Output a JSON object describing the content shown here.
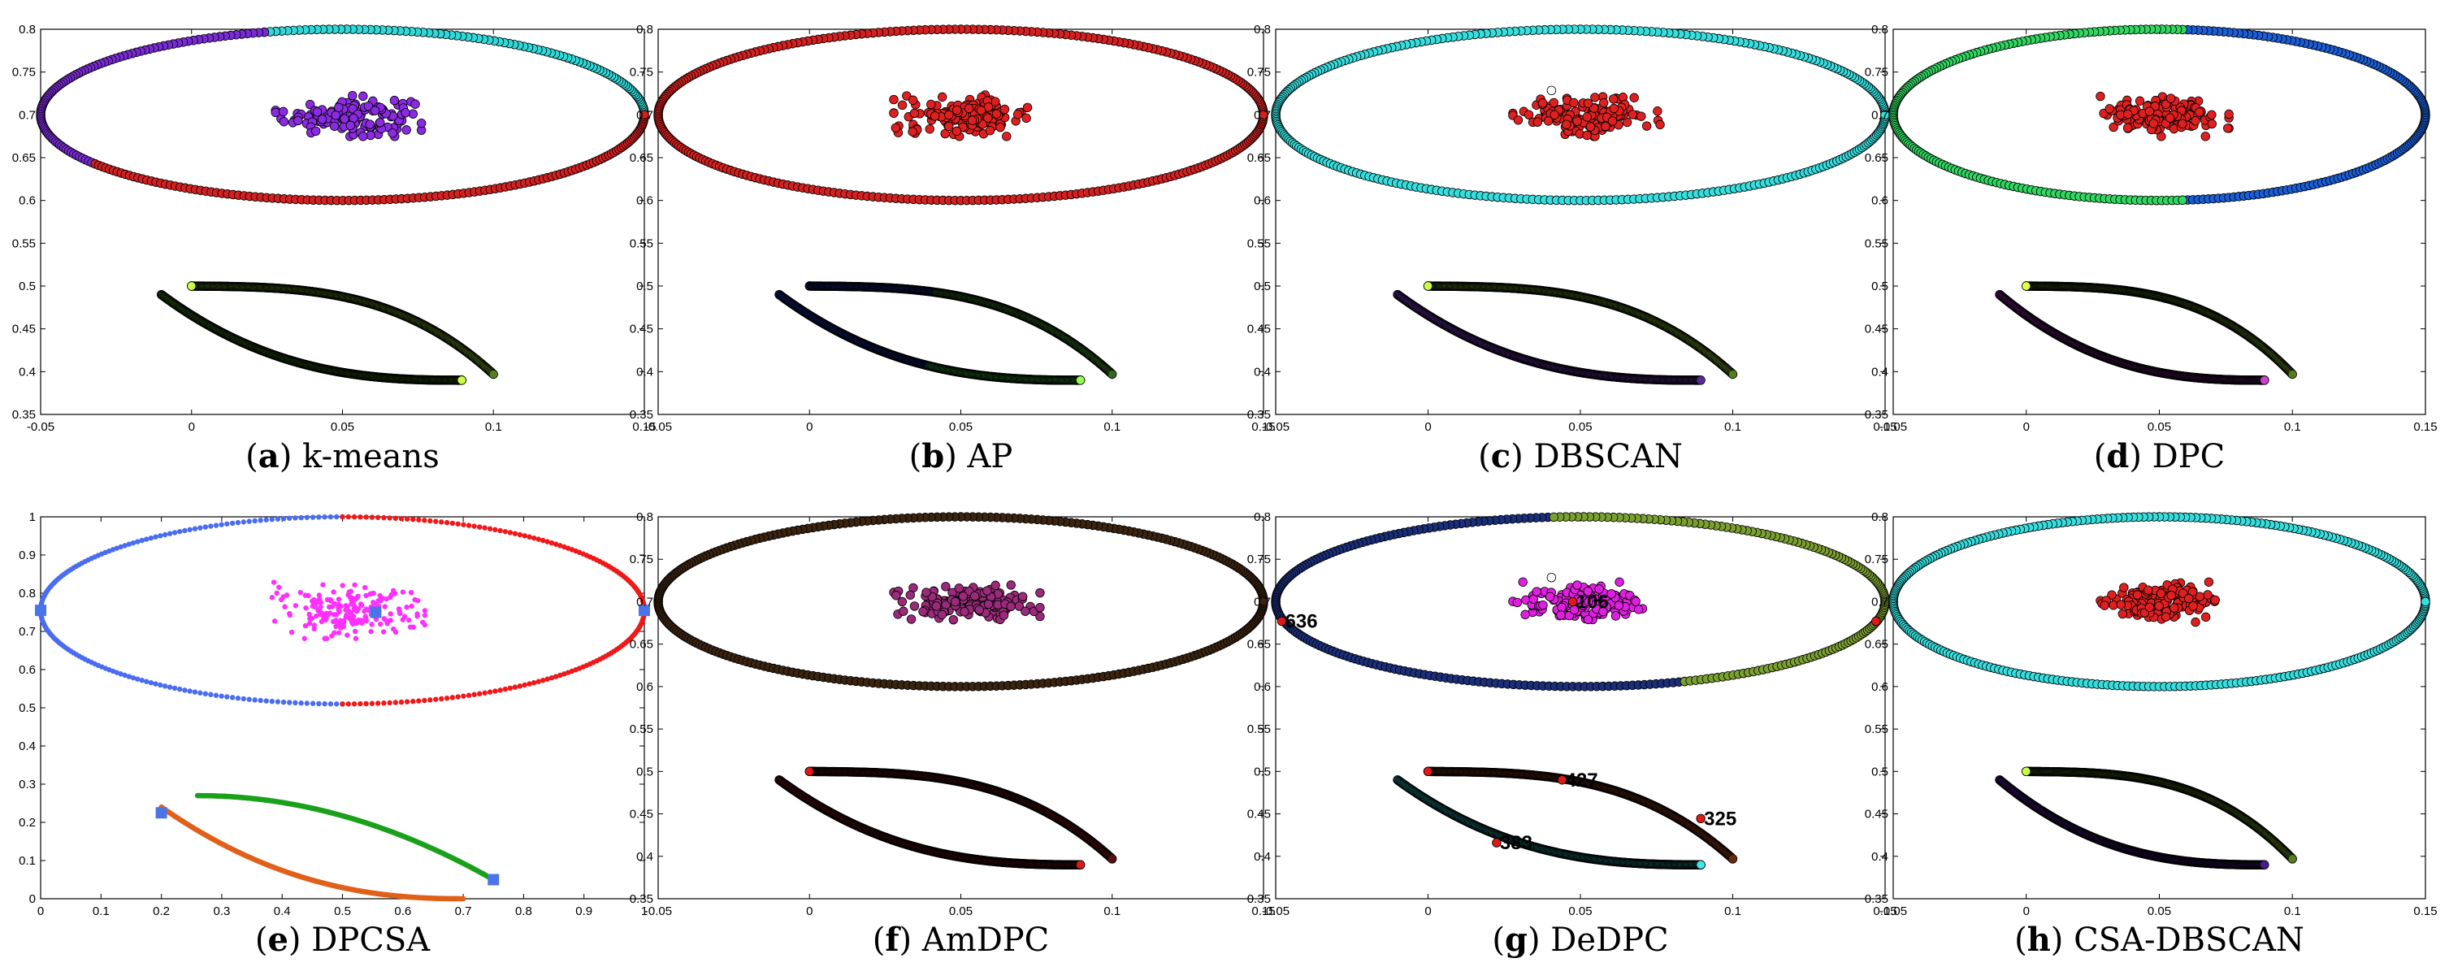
{
  "figure": {
    "panels": [
      {
        "id": "a",
        "caption_letter": "a",
        "caption_text": "k-means"
      },
      {
        "id": "b",
        "caption_letter": "b",
        "caption_text": "AP"
      },
      {
        "id": "c",
        "caption_letter": "c",
        "caption_text": "DBSCAN"
      },
      {
        "id": "d",
        "caption_letter": "d",
        "caption_text": "DPC"
      },
      {
        "id": "e",
        "caption_letter": "e",
        "caption_text": "DPCSA"
      },
      {
        "id": "f",
        "caption_letter": "f",
        "caption_text": "AmDPC"
      },
      {
        "id": "g",
        "caption_letter": "g",
        "caption_text": "DeDPC"
      },
      {
        "id": "h",
        "caption_letter": "h",
        "caption_text": "CSA-DBSCAN"
      }
    ]
  },
  "chart_data": [
    {
      "id": "a",
      "type": "scatter",
      "title": "k-means",
      "xlim": [
        -0.05,
        0.15
      ],
      "ylim": [
        0.35,
        0.8
      ],
      "xticks": [
        "-0.05",
        "0",
        "0.05",
        "0.1",
        "0.15"
      ],
      "yticks": [
        "0.35",
        "0.4",
        "0.45",
        "0.5",
        "0.55",
        "0.6",
        "0.65",
        "0.7",
        "0.75",
        "0.8"
      ],
      "series": [
        {
          "name": "ellipse upper-right",
          "shape": "ellipse-arc",
          "cx": 0.05,
          "cy": 0.7,
          "rx": 0.1,
          "ry": 0.1,
          "from_deg": 0,
          "to_deg": 105,
          "color": "#2fd9d9"
        },
        {
          "name": "ellipse left",
          "shape": "ellipse-arc",
          "cx": 0.05,
          "cy": 0.7,
          "rx": 0.1,
          "ry": 0.1,
          "from_deg": 105,
          "to_deg": 215,
          "color": "#7a2bd6"
        },
        {
          "name": "ellipse bottom",
          "shape": "ellipse-arc",
          "cx": 0.05,
          "cy": 0.7,
          "rx": 0.1,
          "ry": 0.1,
          "from_deg": 215,
          "to_deg": 360,
          "color": "#d62020"
        },
        {
          "name": "central blob",
          "shape": "blob",
          "cx": 0.052,
          "cy": 0.699,
          "sx": 0.0105,
          "sy": 0.0105,
          "n": 150,
          "color": "#8a2be2"
        },
        {
          "name": "upper arc",
          "shape": "arc-upper",
          "color": "#567d1e"
        },
        {
          "name": "lower arc",
          "shape": "arc-lower",
          "color": "#2e5a12"
        }
      ],
      "special_points": [
        {
          "x": 0.0,
          "y": 0.5,
          "color": "#c8ff40"
        },
        {
          "x": 0.0895,
          "y": 0.39,
          "color": "#c8ff40"
        }
      ]
    },
    {
      "id": "b",
      "type": "scatter",
      "title": "AP",
      "xlim": [
        -0.05,
        0.15
      ],
      "ylim": [
        0.35,
        0.8
      ],
      "xticks": [
        "-0.05",
        "0",
        "0.05",
        "0.1",
        "0.15"
      ],
      "yticks": [
        "0.35",
        "0.4",
        "0.45",
        "0.5",
        "0.55",
        "0.6",
        "0.65",
        "0.7",
        "0.75",
        "0.8"
      ],
      "series": [
        {
          "name": "ellipse",
          "shape": "ellipse-arc",
          "cx": 0.05,
          "cy": 0.7,
          "rx": 0.1,
          "ry": 0.1,
          "from_deg": 0,
          "to_deg": 360,
          "color": "#d62020"
        },
        {
          "name": "central blob",
          "shape": "blob",
          "cx": 0.052,
          "cy": 0.699,
          "sx": 0.0105,
          "sy": 0.0105,
          "n": 150,
          "color": "#e02020"
        },
        {
          "name": "upper arc left",
          "shape": "arc-upper",
          "t_from": 0.0,
          "t_to": 0.42,
          "color": "#10207a"
        },
        {
          "name": "upper arc right",
          "shape": "arc-upper",
          "t_from": 0.42,
          "t_to": 1.0,
          "color": "#2e6a22"
        },
        {
          "name": "lower arc left",
          "shape": "arc-lower",
          "t_from": 0.0,
          "t_to": 0.5,
          "color": "#10207a"
        },
        {
          "name": "lower arc right",
          "shape": "arc-lower",
          "t_from": 0.5,
          "t_to": 1.0,
          "color": "#2a8f2a"
        }
      ],
      "special_points": [
        {
          "x": 0.0895,
          "y": 0.39,
          "color": "#90ff50"
        }
      ]
    },
    {
      "id": "c",
      "type": "scatter",
      "title": "DBSCAN",
      "xlim": [
        -0.05,
        0.15
      ],
      "ylim": [
        0.35,
        0.8
      ],
      "xticks": [
        "-0.05",
        "0",
        "0.05",
        "0.1",
        "0.15"
      ],
      "yticks": [
        "0.35",
        "0.4",
        "0.45",
        "0.5",
        "0.55",
        "0.6",
        "0.65",
        "0.7",
        "0.75",
        "0.8"
      ],
      "series": [
        {
          "name": "ellipse",
          "shape": "ellipse-arc",
          "cx": 0.05,
          "cy": 0.7,
          "rx": 0.1,
          "ry": 0.1,
          "from_deg": 0,
          "to_deg": 360,
          "color": "#36dede"
        },
        {
          "name": "central blob",
          "shape": "blob",
          "cx": 0.052,
          "cy": 0.699,
          "sx": 0.0105,
          "sy": 0.0105,
          "n": 150,
          "color": "#e02020"
        },
        {
          "name": "upper arc",
          "shape": "arc-upper",
          "color": "#567d1e"
        },
        {
          "name": "lower arc",
          "shape": "arc-lower",
          "color": "#5a2a9a"
        }
      ],
      "special_points": [
        {
          "x": 0.0405,
          "y": 0.7285,
          "color": "#ffffff"
        },
        {
          "x": 0.0,
          "y": 0.5,
          "color": "#c8ff40"
        }
      ]
    },
    {
      "id": "d",
      "type": "scatter",
      "title": "DPC",
      "xlim": [
        -0.05,
        0.15
      ],
      "ylim": [
        0.35,
        0.8
      ],
      "xticks": [
        "-0.05",
        "0",
        "0.05",
        "0.1",
        "0.15"
      ],
      "yticks": [
        "0.35",
        "0.4",
        "0.45",
        "0.5",
        "0.55",
        "0.6",
        "0.65",
        "0.7",
        "0.75",
        "0.8"
      ],
      "series": [
        {
          "name": "ellipse right",
          "shape": "ellipse-arc",
          "cx": 0.05,
          "cy": 0.7,
          "rx": 0.1,
          "ry": 0.1,
          "from_deg": -85,
          "to_deg": 85,
          "color": "#1a5ed8"
        },
        {
          "name": "ellipse left",
          "shape": "ellipse-arc",
          "cx": 0.05,
          "cy": 0.7,
          "rx": 0.1,
          "ry": 0.1,
          "from_deg": 85,
          "to_deg": 275,
          "color": "#30d860"
        },
        {
          "name": "central blob",
          "shape": "blob",
          "cx": 0.052,
          "cy": 0.699,
          "sx": 0.0105,
          "sy": 0.0105,
          "n": 150,
          "color": "#e02020"
        },
        {
          "name": "upper arc",
          "shape": "arc-upper",
          "color": "#567d1e"
        },
        {
          "name": "lower arc",
          "shape": "arc-lower",
          "color": "#7a1f8a"
        }
      ],
      "special_points": [
        {
          "x": 0.0,
          "y": 0.5,
          "color": "#e8ff40"
        },
        {
          "x": 0.0895,
          "y": 0.39,
          "color": "#d040d0"
        }
      ]
    },
    {
      "id": "e",
      "type": "scatter",
      "title": "DPCSA",
      "xlim": [
        0,
        1
      ],
      "ylim": [
        0,
        1
      ],
      "xticks": [
        "0",
        "0.1",
        "0.2",
        "0.3",
        "0.4",
        "0.5",
        "0.6",
        "0.7",
        "0.8",
        "0.9",
        "1"
      ],
      "yticks": [
        "0",
        "0.1",
        "0.2",
        "0.3",
        "0.4",
        "0.5",
        "0.6",
        "0.7",
        "0.8",
        "0.9",
        "1"
      ],
      "series": [
        {
          "name": "ellipse left",
          "shape": "ellipse-arc",
          "cx": 0.5,
          "cy": 0.755,
          "rx": 0.5,
          "ry": 0.245,
          "from_deg": 90,
          "to_deg": 270,
          "color": "#4a6cf0",
          "small": true
        },
        {
          "name": "ellipse right",
          "shape": "ellipse-arc",
          "cx": 0.5,
          "cy": 0.755,
          "rx": 0.5,
          "ry": 0.245,
          "from_deg": -90,
          "to_deg": 90,
          "color": "#f01818",
          "small": true
        },
        {
          "name": "central blob",
          "shape": "blob",
          "cx": 0.51,
          "cy": 0.755,
          "sx": 0.055,
          "sy": 0.032,
          "n": 200,
          "color": "#ff30ff",
          "small": true
        },
        {
          "name": "upper arc",
          "shape": "e-upper",
          "color": "#1aa01a"
        },
        {
          "name": "lower arc",
          "shape": "e-lower",
          "color": "#e0601a"
        }
      ],
      "centers": [
        {
          "x": 0.0,
          "y": 0.755
        },
        {
          "x": 1.0,
          "y": 0.755
        },
        {
          "x": 0.555,
          "y": 0.75
        },
        {
          "x": 0.2,
          "y": 0.225
        },
        {
          "x": 0.75,
          "y": 0.05
        }
      ]
    },
    {
      "id": "f",
      "type": "scatter",
      "title": "AmDPC",
      "xlim": [
        -0.05,
        0.15
      ],
      "ylim": [
        0.35,
        0.8
      ],
      "xticks": [
        "-0.05",
        "0",
        "0.05",
        "0.1",
        "0.15"
      ],
      "yticks": [
        "0.35",
        "0.4",
        "0.45",
        "0.5",
        "0.55",
        "0.6",
        "0.65",
        "0.7",
        "0.75",
        "0.8"
      ],
      "series": [
        {
          "name": "ellipse",
          "shape": "ellipse-arc",
          "cx": 0.05,
          "cy": 0.7,
          "rx": 0.1,
          "ry": 0.1,
          "from_deg": 0,
          "to_deg": 360,
          "color": "#3a2410"
        },
        {
          "name": "central blob",
          "shape": "blob",
          "cx": 0.052,
          "cy": 0.699,
          "sx": 0.0105,
          "sy": 0.0105,
          "n": 150,
          "color": "#9a2a7a"
        },
        {
          "name": "upper arc",
          "shape": "arc-upper",
          "color": "#5a1010"
        },
        {
          "name": "lower arc",
          "shape": "arc-lower",
          "color": "#5a1010"
        }
      ],
      "special_points": [
        {
          "x": 0.0,
          "y": 0.5,
          "color": "#e01818"
        },
        {
          "x": 0.0895,
          "y": 0.39,
          "color": "#e01818"
        }
      ]
    },
    {
      "id": "g",
      "type": "scatter",
      "title": "DeDPC",
      "xlim": [
        -0.05,
        0.15
      ],
      "ylim": [
        0.35,
        0.8
      ],
      "xticks": [
        "-0.05",
        "0",
        "0.05",
        "0.1",
        "0.15"
      ],
      "yticks": [
        "0.35",
        "0.4",
        "0.45",
        "0.5",
        "0.55",
        "0.6",
        "0.65",
        "0.7",
        "0.75",
        "0.8"
      ],
      "series": [
        {
          "name": "ellipse left",
          "shape": "ellipse-arc",
          "cx": 0.05,
          "cy": 0.7,
          "rx": 0.1,
          "ry": 0.1,
          "from_deg": 95,
          "to_deg": 290,
          "color": "#1a2e7a"
        },
        {
          "name": "ellipse right",
          "shape": "ellipse-arc",
          "cx": 0.05,
          "cy": 0.7,
          "rx": 0.1,
          "ry": 0.1,
          "from_deg": -70,
          "to_deg": 95,
          "color": "#7aa030"
        },
        {
          "name": "central blob",
          "shape": "blob",
          "cx": 0.052,
          "cy": 0.699,
          "sx": 0.0105,
          "sy": 0.0105,
          "n": 150,
          "color": "#e020e0"
        },
        {
          "name": "upper arc",
          "shape": "arc-upper",
          "color": "#6a2a10"
        },
        {
          "name": "lower arc",
          "shape": "arc-lower",
          "color": "#1a7a7a"
        }
      ],
      "special_points": [
        {
          "x": 0.0405,
          "y": 0.7285,
          "color": "#ffffff"
        },
        {
          "x": 0.0895,
          "y": 0.39,
          "color": "#40e8e8"
        }
      ],
      "labeled_points": [
        {
          "label": "636",
          "x": -0.048,
          "y": 0.677
        },
        {
          "label": "106",
          "x": 0.0475,
          "y": 0.7
        },
        {
          "label": "427",
          "x": 0.044,
          "y": 0.49
        },
        {
          "label": "325",
          "x": 0.0895,
          "y": 0.4445
        },
        {
          "label": "383",
          "x": 0.0225,
          "y": 0.416
        }
      ],
      "extra_red_points": [
        {
          "x": 0.147,
          "y": 0.677
        },
        {
          "x": 0.0,
          "y": 0.5
        }
      ]
    },
    {
      "id": "h",
      "type": "scatter",
      "title": "CSA-DBSCAN",
      "xlim": [
        -0.05,
        0.15
      ],
      "ylim": [
        0.35,
        0.8
      ],
      "xticks": [
        "-0.05",
        "0",
        "0.05",
        "0.1",
        "0.15"
      ],
      "yticks": [
        "0.35",
        "0.4",
        "0.45",
        "0.5",
        "0.55",
        "0.6",
        "0.65",
        "0.7",
        "0.75",
        "0.8"
      ],
      "series": [
        {
          "name": "ellipse",
          "shape": "ellipse-arc",
          "cx": 0.05,
          "cy": 0.7,
          "rx": 0.1,
          "ry": 0.1,
          "from_deg": 0,
          "to_deg": 360,
          "color": "#36dede"
        },
        {
          "name": "central blob",
          "shape": "blob",
          "cx": 0.052,
          "cy": 0.699,
          "sx": 0.0105,
          "sy": 0.0105,
          "n": 150,
          "color": "#e02020"
        },
        {
          "name": "upper arc",
          "shape": "arc-upper",
          "color": "#567d1e"
        },
        {
          "name": "lower arc",
          "shape": "arc-lower",
          "color": "#4a1a90"
        }
      ],
      "special_points": [
        {
          "x": 0.0,
          "y": 0.5,
          "color": "#c8ff40"
        }
      ]
    }
  ]
}
